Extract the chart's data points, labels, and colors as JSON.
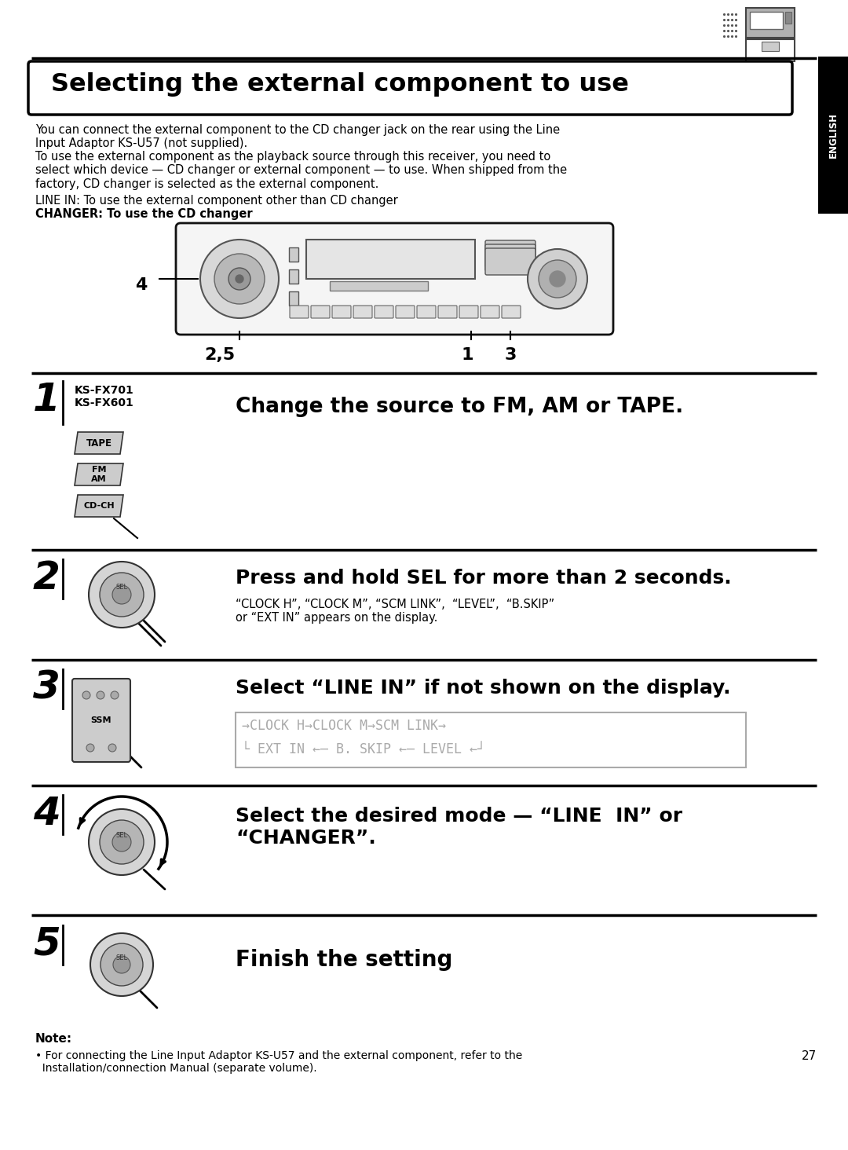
{
  "bg_color": "#ffffff",
  "title": "Selecting the external component to use",
  "english_tab": "ENGLISH",
  "page_number": "27",
  "intro1": "You can connect the external component to the CD changer jack on the rear using the Line\nInput Adaptor KS-U57 (not supplied).",
  "intro2": "To use the external component as the playback source through this receiver, you need to\nselect which device — CD changer or external component — to use. When shipped from the\nfactory, CD changer is selected as the external component.",
  "intro3": "LINE IN: To use the external component other than CD changer",
  "intro4": "CHANGER: To use the CD changer",
  "step1_models": "KS-FX701\nKS-FX601",
  "step1_text": "Change the source to FM, AM or TAPE.",
  "step2_text": "Press and hold SEL for more than 2 seconds.",
  "step2_sub": "“CLOCK H”, “CLOCK M”, “SCM LINK”,  “LEVEL”,  “B.SKIP”\nor “EXT IN” appears on the display.",
  "step3_text": "Select “LINE IN” if not shown on the display.",
  "step3_diag1": "→CLOCK H→CLOCK M→SCM LINK→",
  "step3_diag2": "└ EXT IN ←— B. SKIP ←— LEVEL ←┘",
  "step4_text": "Select the desired mode — “LINE  IN” or\n“CHANGER”.",
  "step5_text": "Finish the setting",
  "note_head": "Note:",
  "note_body": "• For connecting the Line Input Adaptor KS-U57 and the external component, refer to the\n  Installation/connection Manual (separate volume)."
}
